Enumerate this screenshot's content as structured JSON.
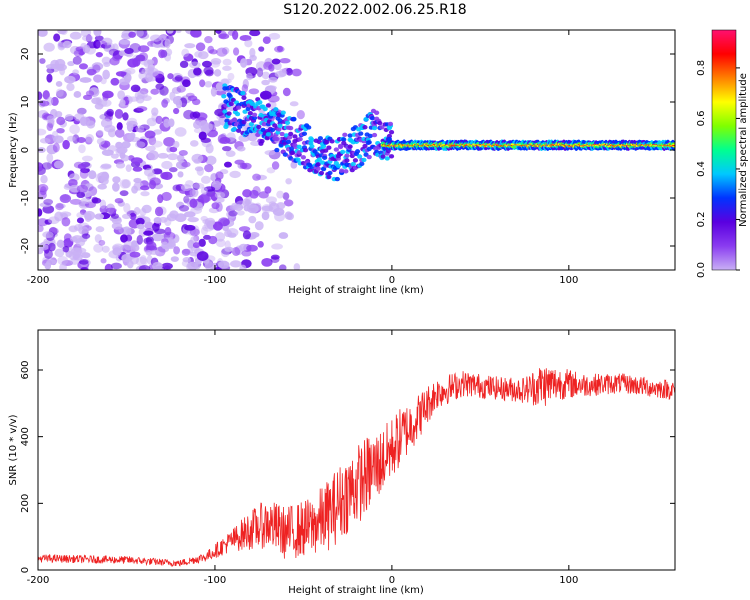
{
  "figure": {
    "title": "S120.2022.002.06.25.R18"
  },
  "chart_data": [
    {
      "type": "heatmap",
      "xlabel": "Height of straight line (km)",
      "ylabel": "Frequency (Hz)",
      "xlim": [
        -200,
        160
      ],
      "ylim": [
        -25,
        25
      ],
      "xticks": [
        "-200",
        "-100",
        "0",
        "100"
      ],
      "xtick_values": [
        -200,
        -100,
        0,
        100
      ],
      "yticks": [
        "-20",
        "-10",
        "0",
        "10",
        "20"
      ],
      "ytick_values": [
        -20,
        -10,
        0,
        10,
        20
      ],
      "colorbar": {
        "label": "Normalized spectral amplitude",
        "range": [
          0.0,
          0.95
        ],
        "ticks": [
          "0.0",
          "0.2",
          "0.4",
          "0.6",
          "0.8"
        ],
        "tick_values": [
          0.0,
          0.2,
          0.4,
          0.6,
          0.8
        ],
        "colormap": [
          "#ffffff",
          "#c9b0f5",
          "#8a3cf0",
          "#5a00e0",
          "#0033ff",
          "#00c8ff",
          "#00ff90",
          "#80ff00",
          "#ffff00",
          "#ff8000",
          "#ff0000",
          "#ff1070"
        ]
      },
      "features": {
        "noise_region_x": [
          -200,
          -90
        ],
        "carrier_trend": [
          {
            "x": -95,
            "y": 9
          },
          {
            "x": -85,
            "y": 8
          },
          {
            "x": -75,
            "y": 6
          },
          {
            "x": -65,
            "y": 4
          },
          {
            "x": -55,
            "y": 2
          },
          {
            "x": -45,
            "y": 0
          },
          {
            "x": -35,
            "y": -2
          },
          {
            "x": -25,
            "y": -1
          },
          {
            "x": -15,
            "y": 2
          },
          {
            "x": -10,
            "y": 4
          },
          {
            "x": -5,
            "y": 2
          },
          {
            "x": 0,
            "y": 1
          },
          {
            "x": 160,
            "y": 1
          }
        ],
        "stable_line_y": 1,
        "stable_line_x": [
          -5,
          160
        ]
      }
    },
    {
      "type": "line",
      "xlabel": "Height of straight line (km)",
      "ylabel": "SNR (10 * v/v)",
      "xlim": [
        -200,
        160
      ],
      "ylim": [
        0,
        720
      ],
      "xticks": [
        "-200",
        "-100",
        "0",
        "100"
      ],
      "xtick_values": [
        -200,
        -100,
        0,
        100
      ],
      "yticks": [
        "0",
        "200",
        "400",
        "600"
      ],
      "ytick_values": [
        0,
        200,
        400,
        600
      ],
      "color": "#ee2222",
      "envelope": [
        {
          "x": -200,
          "mean": 35,
          "noise": 12
        },
        {
          "x": -150,
          "mean": 30,
          "noise": 12
        },
        {
          "x": -120,
          "mean": 20,
          "noise": 10
        },
        {
          "x": -105,
          "mean": 40,
          "noise": 15
        },
        {
          "x": -90,
          "mean": 90,
          "noise": 35
        },
        {
          "x": -80,
          "mean": 120,
          "noise": 60
        },
        {
          "x": -70,
          "mean": 140,
          "noise": 75
        },
        {
          "x": -60,
          "mean": 110,
          "noise": 80
        },
        {
          "x": -45,
          "mean": 130,
          "noise": 90
        },
        {
          "x": -35,
          "mean": 170,
          "noise": 110
        },
        {
          "x": -25,
          "mean": 230,
          "noise": 120
        },
        {
          "x": -15,
          "mean": 280,
          "noise": 120
        },
        {
          "x": -5,
          "mean": 330,
          "noise": 100
        },
        {
          "x": 5,
          "mean": 400,
          "noise": 90
        },
        {
          "x": 15,
          "mean": 460,
          "noise": 70
        },
        {
          "x": 25,
          "mean": 530,
          "noise": 50
        },
        {
          "x": 40,
          "mean": 560,
          "noise": 40
        },
        {
          "x": 60,
          "mean": 545,
          "noise": 35
        },
        {
          "x": 75,
          "mean": 540,
          "noise": 40
        },
        {
          "x": 85,
          "mean": 555,
          "noise": 70
        },
        {
          "x": 95,
          "mean": 560,
          "noise": 50
        },
        {
          "x": 110,
          "mean": 555,
          "noise": 35
        },
        {
          "x": 130,
          "mean": 560,
          "noise": 30
        },
        {
          "x": 150,
          "mean": 545,
          "noise": 30
        },
        {
          "x": 160,
          "mean": 540,
          "noise": 30
        }
      ]
    }
  ]
}
